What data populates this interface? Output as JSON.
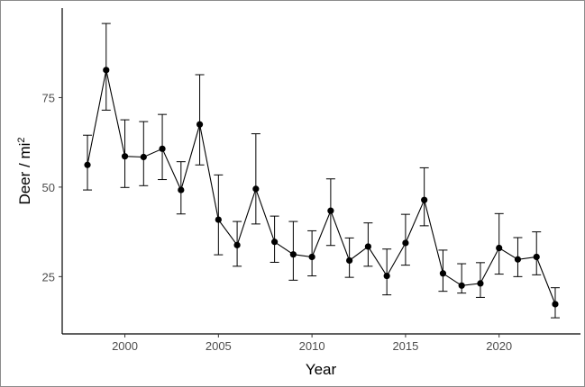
{
  "chart_data": {
    "type": "line",
    "xlabel": "Year",
    "ylabel": "Deer / mi",
    "ylabel_superscript": "2",
    "xlim": [
      1996.65,
      2024.35
    ],
    "ylim": [
      9.0,
      100.0
    ],
    "x_ticks": [
      "2000",
      "2005",
      "2010",
      "2015",
      "2020"
    ],
    "y_ticks": [
      "25",
      "50",
      "75"
    ],
    "grid": false,
    "legend": "none",
    "series": [
      {
        "color": "#000000",
        "error_bars": true,
        "points": [
          {
            "x": 1998,
            "y": 56.2,
            "lo": 49.2,
            "hi": 64.5
          },
          {
            "x": 1999,
            "y": 82.7,
            "lo": 71.5,
            "hi": 95.7
          },
          {
            "x": 2000,
            "y": 58.6,
            "lo": 49.9,
            "hi": 68.8
          },
          {
            "x": 2001,
            "y": 58.4,
            "lo": 50.4,
            "hi": 68.3
          },
          {
            "x": 2002,
            "y": 60.7,
            "lo": 52.1,
            "hi": 70.3
          },
          {
            "x": 2003,
            "y": 49.2,
            "lo": 42.5,
            "hi": 57.1
          },
          {
            "x": 2004,
            "y": 67.5,
            "lo": 56.2,
            "hi": 81.4
          },
          {
            "x": 2005,
            "y": 40.9,
            "lo": 31.1,
            "hi": 53.4
          },
          {
            "x": 2006,
            "y": 33.8,
            "lo": 27.9,
            "hi": 40.4
          },
          {
            "x": 2007,
            "y": 49.5,
            "lo": 39.7,
            "hi": 64.9
          },
          {
            "x": 2008,
            "y": 34.7,
            "lo": 29.0,
            "hi": 41.9
          },
          {
            "x": 2009,
            "y": 31.2,
            "lo": 24.0,
            "hi": 40.4
          },
          {
            "x": 2010,
            "y": 30.5,
            "lo": 25.2,
            "hi": 37.8
          },
          {
            "x": 2011,
            "y": 43.4,
            "lo": 33.7,
            "hi": 52.3
          },
          {
            "x": 2012,
            "y": 29.5,
            "lo": 24.8,
            "hi": 35.8
          },
          {
            "x": 2013,
            "y": 33.4,
            "lo": 27.9,
            "hi": 40.0
          },
          {
            "x": 2014,
            "y": 25.2,
            "lo": 19.9,
            "hi": 32.7
          },
          {
            "x": 2015,
            "y": 34.4,
            "lo": 28.2,
            "hi": 42.4
          },
          {
            "x": 2016,
            "y": 46.4,
            "lo": 39.2,
            "hi": 55.4
          },
          {
            "x": 2017,
            "y": 25.9,
            "lo": 20.9,
            "hi": 32.4
          },
          {
            "x": 2018,
            "y": 22.5,
            "lo": 20.4,
            "hi": 28.6
          },
          {
            "x": 2019,
            "y": 23.1,
            "lo": 19.2,
            "hi": 28.9
          },
          {
            "x": 2020,
            "y": 33.0,
            "lo": 25.7,
            "hi": 42.6
          },
          {
            "x": 2021,
            "y": 29.8,
            "lo": 25.0,
            "hi": 35.9
          },
          {
            "x": 2022,
            "y": 30.5,
            "lo": 25.5,
            "hi": 37.5
          },
          {
            "x": 2023,
            "y": 17.3,
            "lo": 13.5,
            "hi": 21.9
          }
        ]
      }
    ]
  }
}
